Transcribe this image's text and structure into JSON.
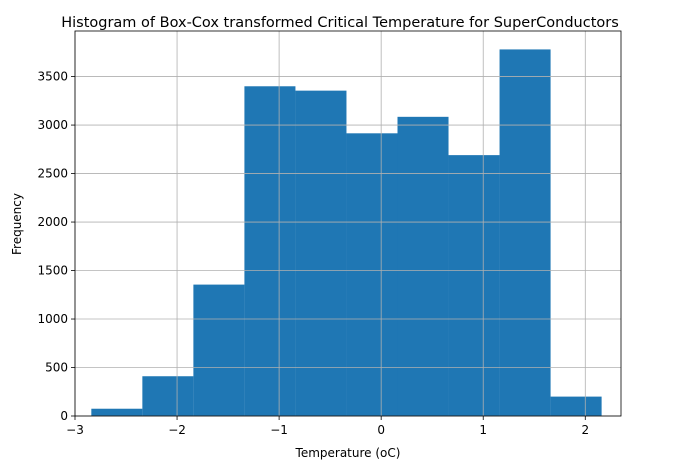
{
  "chart_data": {
    "type": "bar",
    "title": "Histogram of Box-Cox transformed Critical Temperature for SuperConductors",
    "xlabel": "Temperature (oC)",
    "ylabel": "Frequency",
    "xlim": [
      -3.0,
      2.35
    ],
    "ylim": [
      0,
      3970
    ],
    "x_ticks": [
      -3,
      -2,
      -1,
      0,
      1,
      2
    ],
    "x_tick_labels": [
      "−3",
      "−2",
      "−1",
      "0",
      "1",
      "2"
    ],
    "y_ticks": [
      0,
      500,
      1000,
      1500,
      2000,
      2500,
      3000,
      3500
    ],
    "y_tick_labels": [
      "0",
      "500",
      "1000",
      "1500",
      "2000",
      "2500",
      "3000",
      "3500"
    ],
    "grid": true,
    "bin_edges": [
      -2.84,
      -2.34,
      -1.84,
      -1.34,
      -0.84,
      -0.34,
      0.16,
      0.66,
      1.16,
      1.66,
      2.16
    ],
    "values": [
      75,
      410,
      1355,
      3400,
      3355,
      2915,
      3085,
      2690,
      3780,
      200
    ],
    "bar_color": "#1f77b4",
    "grid_color": "#b0b0b0"
  }
}
